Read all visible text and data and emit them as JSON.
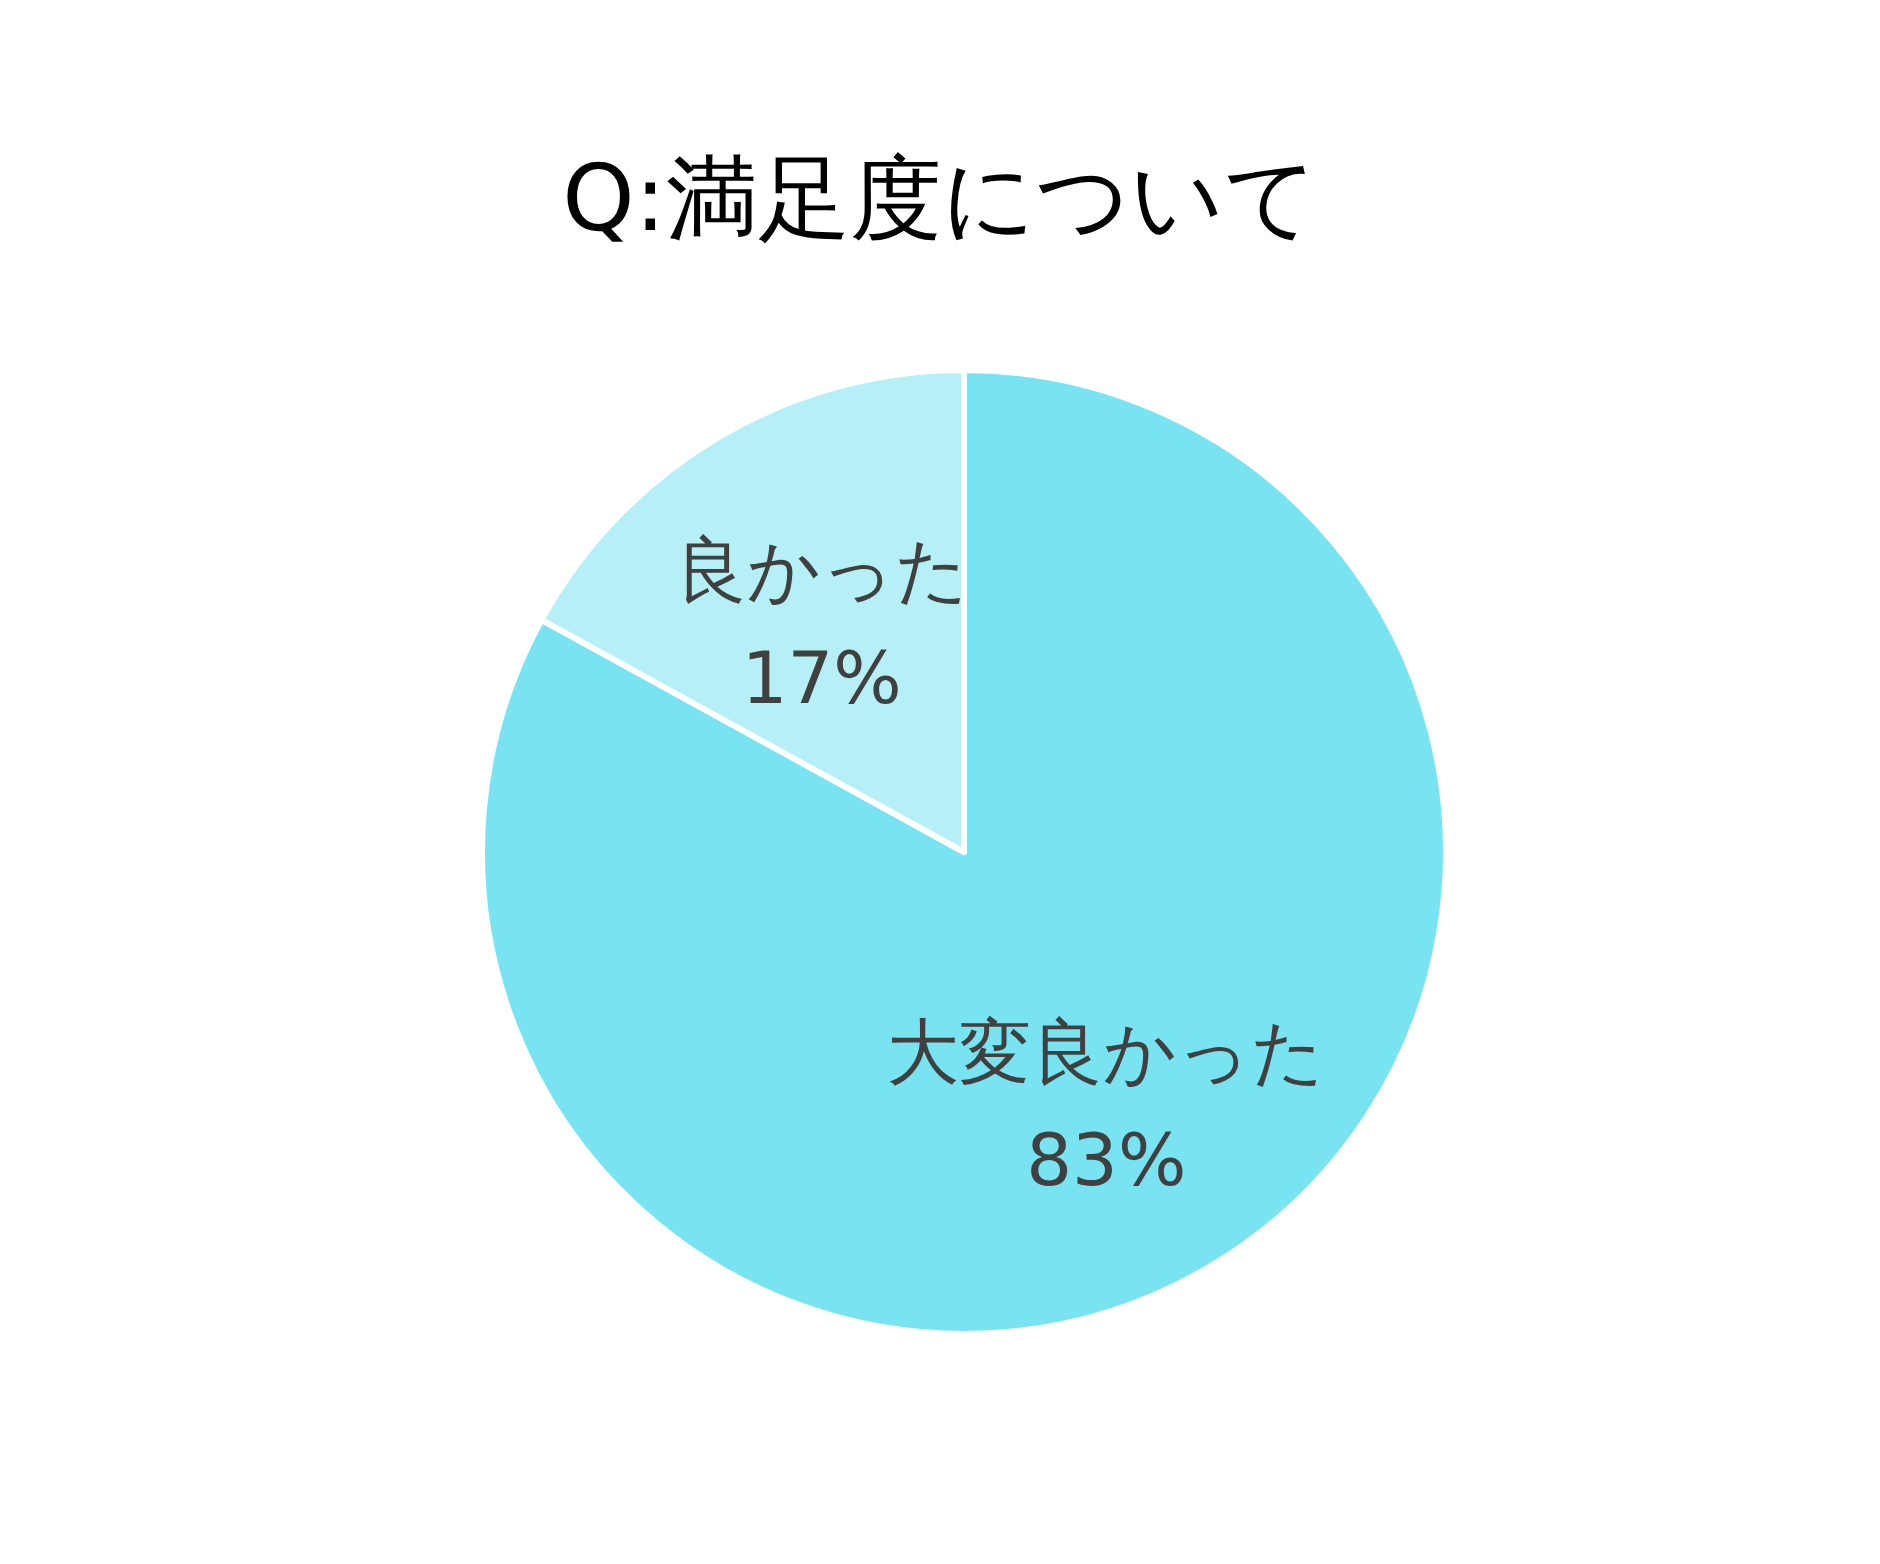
{
  "chart_data": {
    "type": "pie",
    "title": "Q:満足度について",
    "categories": [
      "大変良かった",
      "良かった"
    ],
    "values": [
      83,
      17
    ],
    "colors": [
      "#78e4f2",
      "#b5f0f7"
    ],
    "value_labels": [
      "83%",
      "17%"
    ]
  }
}
